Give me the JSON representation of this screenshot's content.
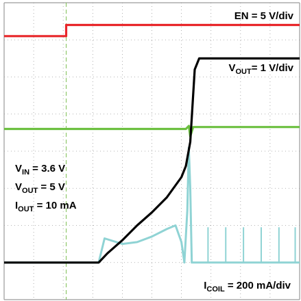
{
  "chart_data": {
    "type": "line",
    "title": "",
    "grid": true,
    "grid_divisions": {
      "horizontal": 10,
      "vertical": 8
    },
    "x_axis": {
      "unit": "div",
      "range": [
        0,
        10
      ]
    },
    "y_axis": {
      "unit": "div",
      "range": [
        0,
        8
      ]
    },
    "conditions": [
      {
        "main": "V",
        "sub": "IN",
        "rest": " = 3.6 V"
      },
      {
        "main": "V",
        "sub": "OUT",
        "rest": " = 5 V"
      },
      {
        "main": "I",
        "sub": "OUT",
        "rest": " = 10 mA"
      }
    ],
    "series": [
      {
        "name": "EN",
        "scale": {
          "main": "EN",
          "sub": "",
          "rest": " = 5 V/div"
        },
        "color": "#e8262a",
        "x": [
          0,
          2.1,
          2.1,
          10
        ],
        "y": [
          7.1,
          7.1,
          7.4,
          7.4
        ]
      },
      {
        "name": "VOUT",
        "scale": {
          "main": "V",
          "sub": "OUT",
          "rest": "= 1 V/div"
        },
        "color": "#000000",
        "x": [
          0,
          3.2,
          3.5,
          4.0,
          4.5,
          5.0,
          5.5,
          6.0,
          6.15,
          6.3,
          6.45,
          6.6,
          10
        ],
        "y": [
          1.0,
          1.0,
          1.25,
          1.6,
          2.0,
          2.35,
          2.75,
          3.3,
          3.6,
          4.25,
          6.2,
          6.5,
          6.5
        ]
      },
      {
        "name": "VIN",
        "scale": null,
        "color": "#6cc040",
        "x": [
          0,
          6.0,
          6.15,
          6.25,
          6.3,
          6.4,
          10
        ],
        "y": [
          4.6,
          4.6,
          4.6,
          4.68,
          4.4,
          4.65,
          4.65
        ]
      },
      {
        "name": "ICOIL",
        "scale": {
          "main": "I",
          "sub": "COIL",
          "rest": " = 200 mA/div"
        },
        "color": "#8fd3d4",
        "x": [
          0,
          3.2,
          3.4,
          4.0,
          4.5,
          5.0,
          5.5,
          5.8,
          6.0,
          6.1,
          6.2,
          6.25,
          6.3,
          6.35,
          6.5,
          7.0,
          8.0,
          10
        ],
        "y": [
          1.0,
          1.0,
          1.65,
          1.5,
          1.55,
          1.7,
          1.9,
          2.0,
          1.55,
          1.0,
          2.4,
          4.1,
          3.0,
          1.0,
          1.0,
          1.0,
          1.0,
          1.0
        ]
      }
    ]
  }
}
